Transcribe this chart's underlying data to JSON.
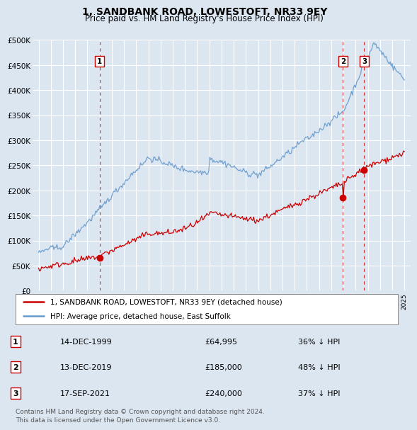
{
  "title": "1, SANDBANK ROAD, LOWESTOFT, NR33 9EY",
  "subtitle": "Price paid vs. HM Land Registry's House Price Index (HPI)",
  "background_color": "#dce6f1",
  "red_line_color": "#cc0000",
  "blue_line_color": "#6699cc",
  "ylim": [
    0,
    500000
  ],
  "yticks": [
    0,
    50000,
    100000,
    150000,
    200000,
    250000,
    300000,
    350000,
    400000,
    450000,
    500000
  ],
  "transactions": [
    {
      "label": "1",
      "date_str": "14-DEC-1999",
      "price": 64995,
      "pct": "36%",
      "direction": "↓",
      "x_year": 2000.0
    },
    {
      "label": "2",
      "date_str": "13-DEC-2019",
      "price": 185000,
      "pct": "48%",
      "direction": "↓",
      "x_year": 2019.95
    },
    {
      "label": "3",
      "date_str": "17-SEP-2021",
      "price": 240000,
      "pct": "37%",
      "direction": "↓",
      "x_year": 2021.7
    }
  ],
  "legend_red": "1, SANDBANK ROAD, LOWESTOFT, NR33 9EY (detached house)",
  "legend_blue": "HPI: Average price, detached house, East Suffolk",
  "footer": "Contains HM Land Registry data © Crown copyright and database right 2024.\nThis data is licensed under the Open Government Licence v3.0.",
  "xlim_left": 1994.5,
  "xlim_right": 2025.5
}
